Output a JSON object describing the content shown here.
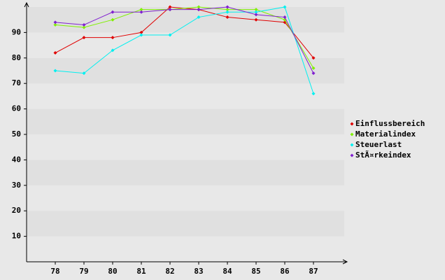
{
  "chart_data": {
    "type": "line",
    "categories": [
      "78",
      "79",
      "80",
      "81",
      "82",
      "83",
      "84",
      "85",
      "86",
      "87"
    ],
    "series": [
      {
        "name": "Einflussbereich",
        "color": "#e00000",
        "values": [
          82,
          88,
          88,
          90,
          100,
          99,
          96,
          95,
          94,
          80
        ]
      },
      {
        "name": "Materialindex",
        "color": "#80f000",
        "values": [
          93,
          92,
          95,
          99,
          99,
          100,
          99,
          99,
          95,
          76
        ]
      },
      {
        "name": "Steuerlast",
        "color": "#00f0f0",
        "values": [
          75,
          74,
          83,
          89,
          89,
          96,
          98,
          98,
          100,
          66
        ]
      },
      {
        "name": "StÃ¤rkeindex",
        "color": "#8020d0",
        "values": [
          94,
          93,
          98,
          98,
          99,
          99,
          100,
          97,
          96,
          74
        ]
      }
    ],
    "ylim": [
      0,
      100
    ],
    "yticks": [
      10,
      20,
      30,
      40,
      50,
      60,
      70,
      80,
      90
    ],
    "grid": true,
    "legend": "right"
  }
}
